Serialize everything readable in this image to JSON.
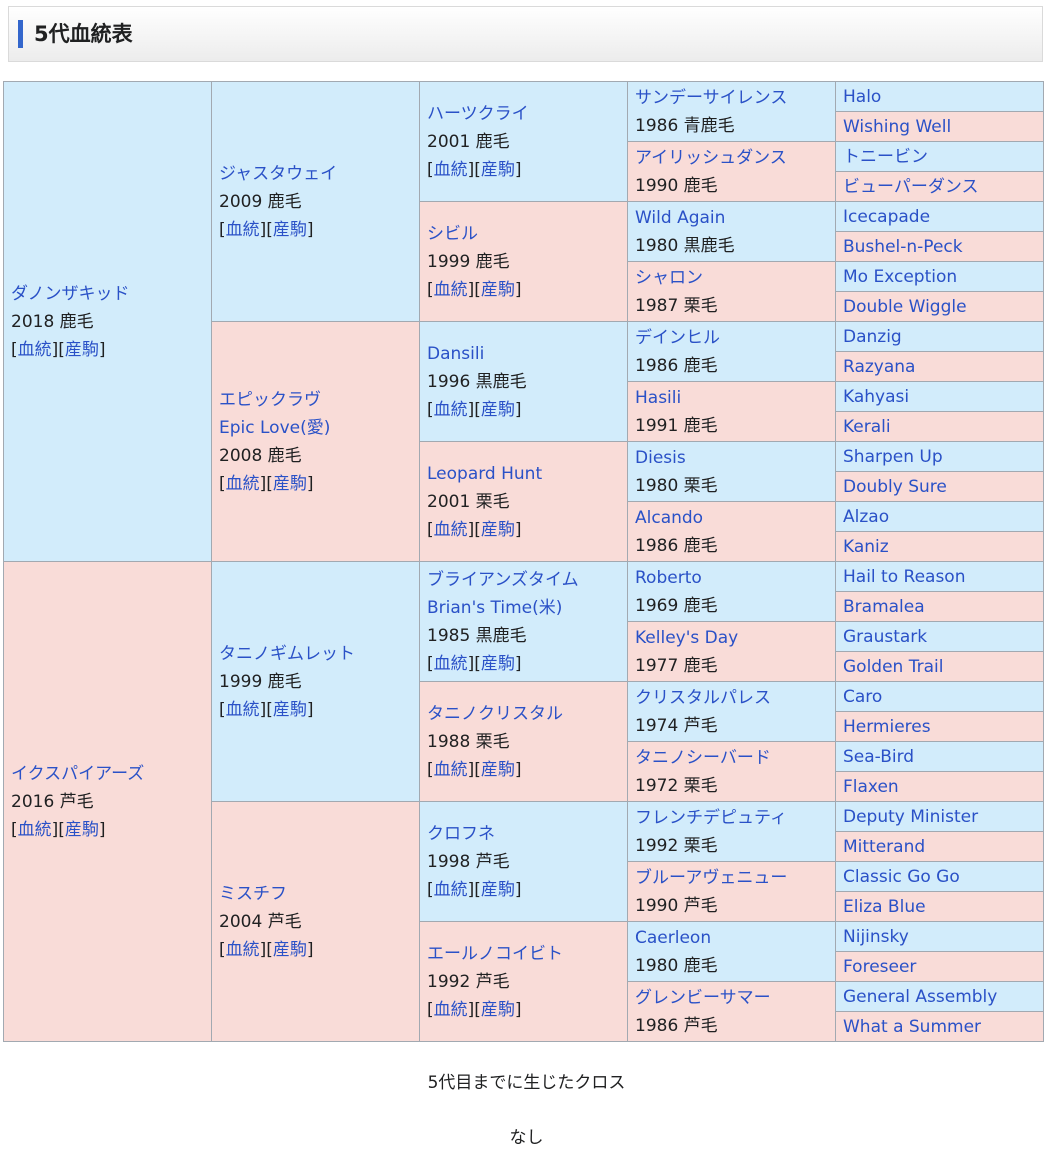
{
  "title": "5代血統表",
  "links": {
    "pedigree": "血統",
    "offspring": "産駒"
  },
  "gen1": [
    {
      "name": "ダノンザキッド",
      "info": "2018 鹿毛"
    },
    {
      "name": "イクスパイアーズ",
      "info": "2016 芦毛"
    }
  ],
  "gen2": [
    {
      "name": "ジャスタウェイ",
      "info": "2009 鹿毛"
    },
    {
      "name": "エピックラヴ",
      "alt": "Epic Love(愛)",
      "info": "2008 鹿毛"
    },
    {
      "name": "タニノギムレット",
      "info": "1999 鹿毛"
    },
    {
      "name": "ミスチフ",
      "info": "2004 芦毛"
    }
  ],
  "gen3": [
    {
      "name": "ハーツクライ",
      "info": "2001 鹿毛"
    },
    {
      "name": "シビル",
      "info": "1999 鹿毛"
    },
    {
      "name": "Dansili",
      "info": "1996 黒鹿毛"
    },
    {
      "name": "Leopard Hunt",
      "info": "2001 栗毛"
    },
    {
      "name": "ブライアンズタイム",
      "alt": "Brian's Time(米)",
      "info": "1985 黒鹿毛"
    },
    {
      "name": "タニノクリスタル",
      "info": "1988 栗毛"
    },
    {
      "name": "クロフネ",
      "info": "1998 芦毛"
    },
    {
      "name": "エールノコイビト",
      "info": "1992 芦毛"
    }
  ],
  "gen4": [
    {
      "name": "サンデーサイレンス",
      "info": "1986 青鹿毛"
    },
    {
      "name": "アイリッシュダンス",
      "info": "1990 鹿毛"
    },
    {
      "name": "Wild Again",
      "info": "1980 黒鹿毛"
    },
    {
      "name": "シャロン",
      "info": "1987 栗毛"
    },
    {
      "name": "デインヒル",
      "info": "1986 鹿毛"
    },
    {
      "name": "Hasili",
      "info": "1991 鹿毛"
    },
    {
      "name": "Diesis",
      "info": "1980 栗毛"
    },
    {
      "name": "Alcando",
      "info": "1986 鹿毛"
    },
    {
      "name": "Roberto",
      "info": "1969 鹿毛"
    },
    {
      "name": "Kelley's Day",
      "info": "1977 鹿毛"
    },
    {
      "name": "クリスタルパレス",
      "info": "1974 芦毛"
    },
    {
      "name": "タニノシーバード",
      "info": "1972 栗毛"
    },
    {
      "name": "フレンチデピュティ",
      "info": "1992 栗毛"
    },
    {
      "name": "ブルーアヴェニュー",
      "info": "1990 芦毛"
    },
    {
      "name": "Caerleon",
      "info": "1980 鹿毛"
    },
    {
      "name": "グレンビーサマー",
      "info": "1986 芦毛"
    }
  ],
  "gen5": [
    "Halo",
    "Wishing Well",
    "トニービン",
    "ビューパーダンス",
    "Icecapade",
    "Bushel-n-Peck",
    "Mo Exception",
    "Double Wiggle",
    "Danzig",
    "Razyana",
    "Kahyasi",
    "Kerali",
    "Sharpen Up",
    "Doubly Sure",
    "Alzao",
    "Kaniz",
    "Hail to Reason",
    "Bramalea",
    "Graustark",
    "Golden Trail",
    "Caro",
    "Hermieres",
    "Sea-Bird",
    "Flaxen",
    "Deputy Minister",
    "Mitterand",
    "Classic Go Go",
    "Eliza Blue",
    "Nijinsky",
    "Foreseer",
    "General Assembly",
    "What a Summer"
  ],
  "cross": {
    "heading": "5代目までに生じたクロス",
    "value": "なし"
  }
}
